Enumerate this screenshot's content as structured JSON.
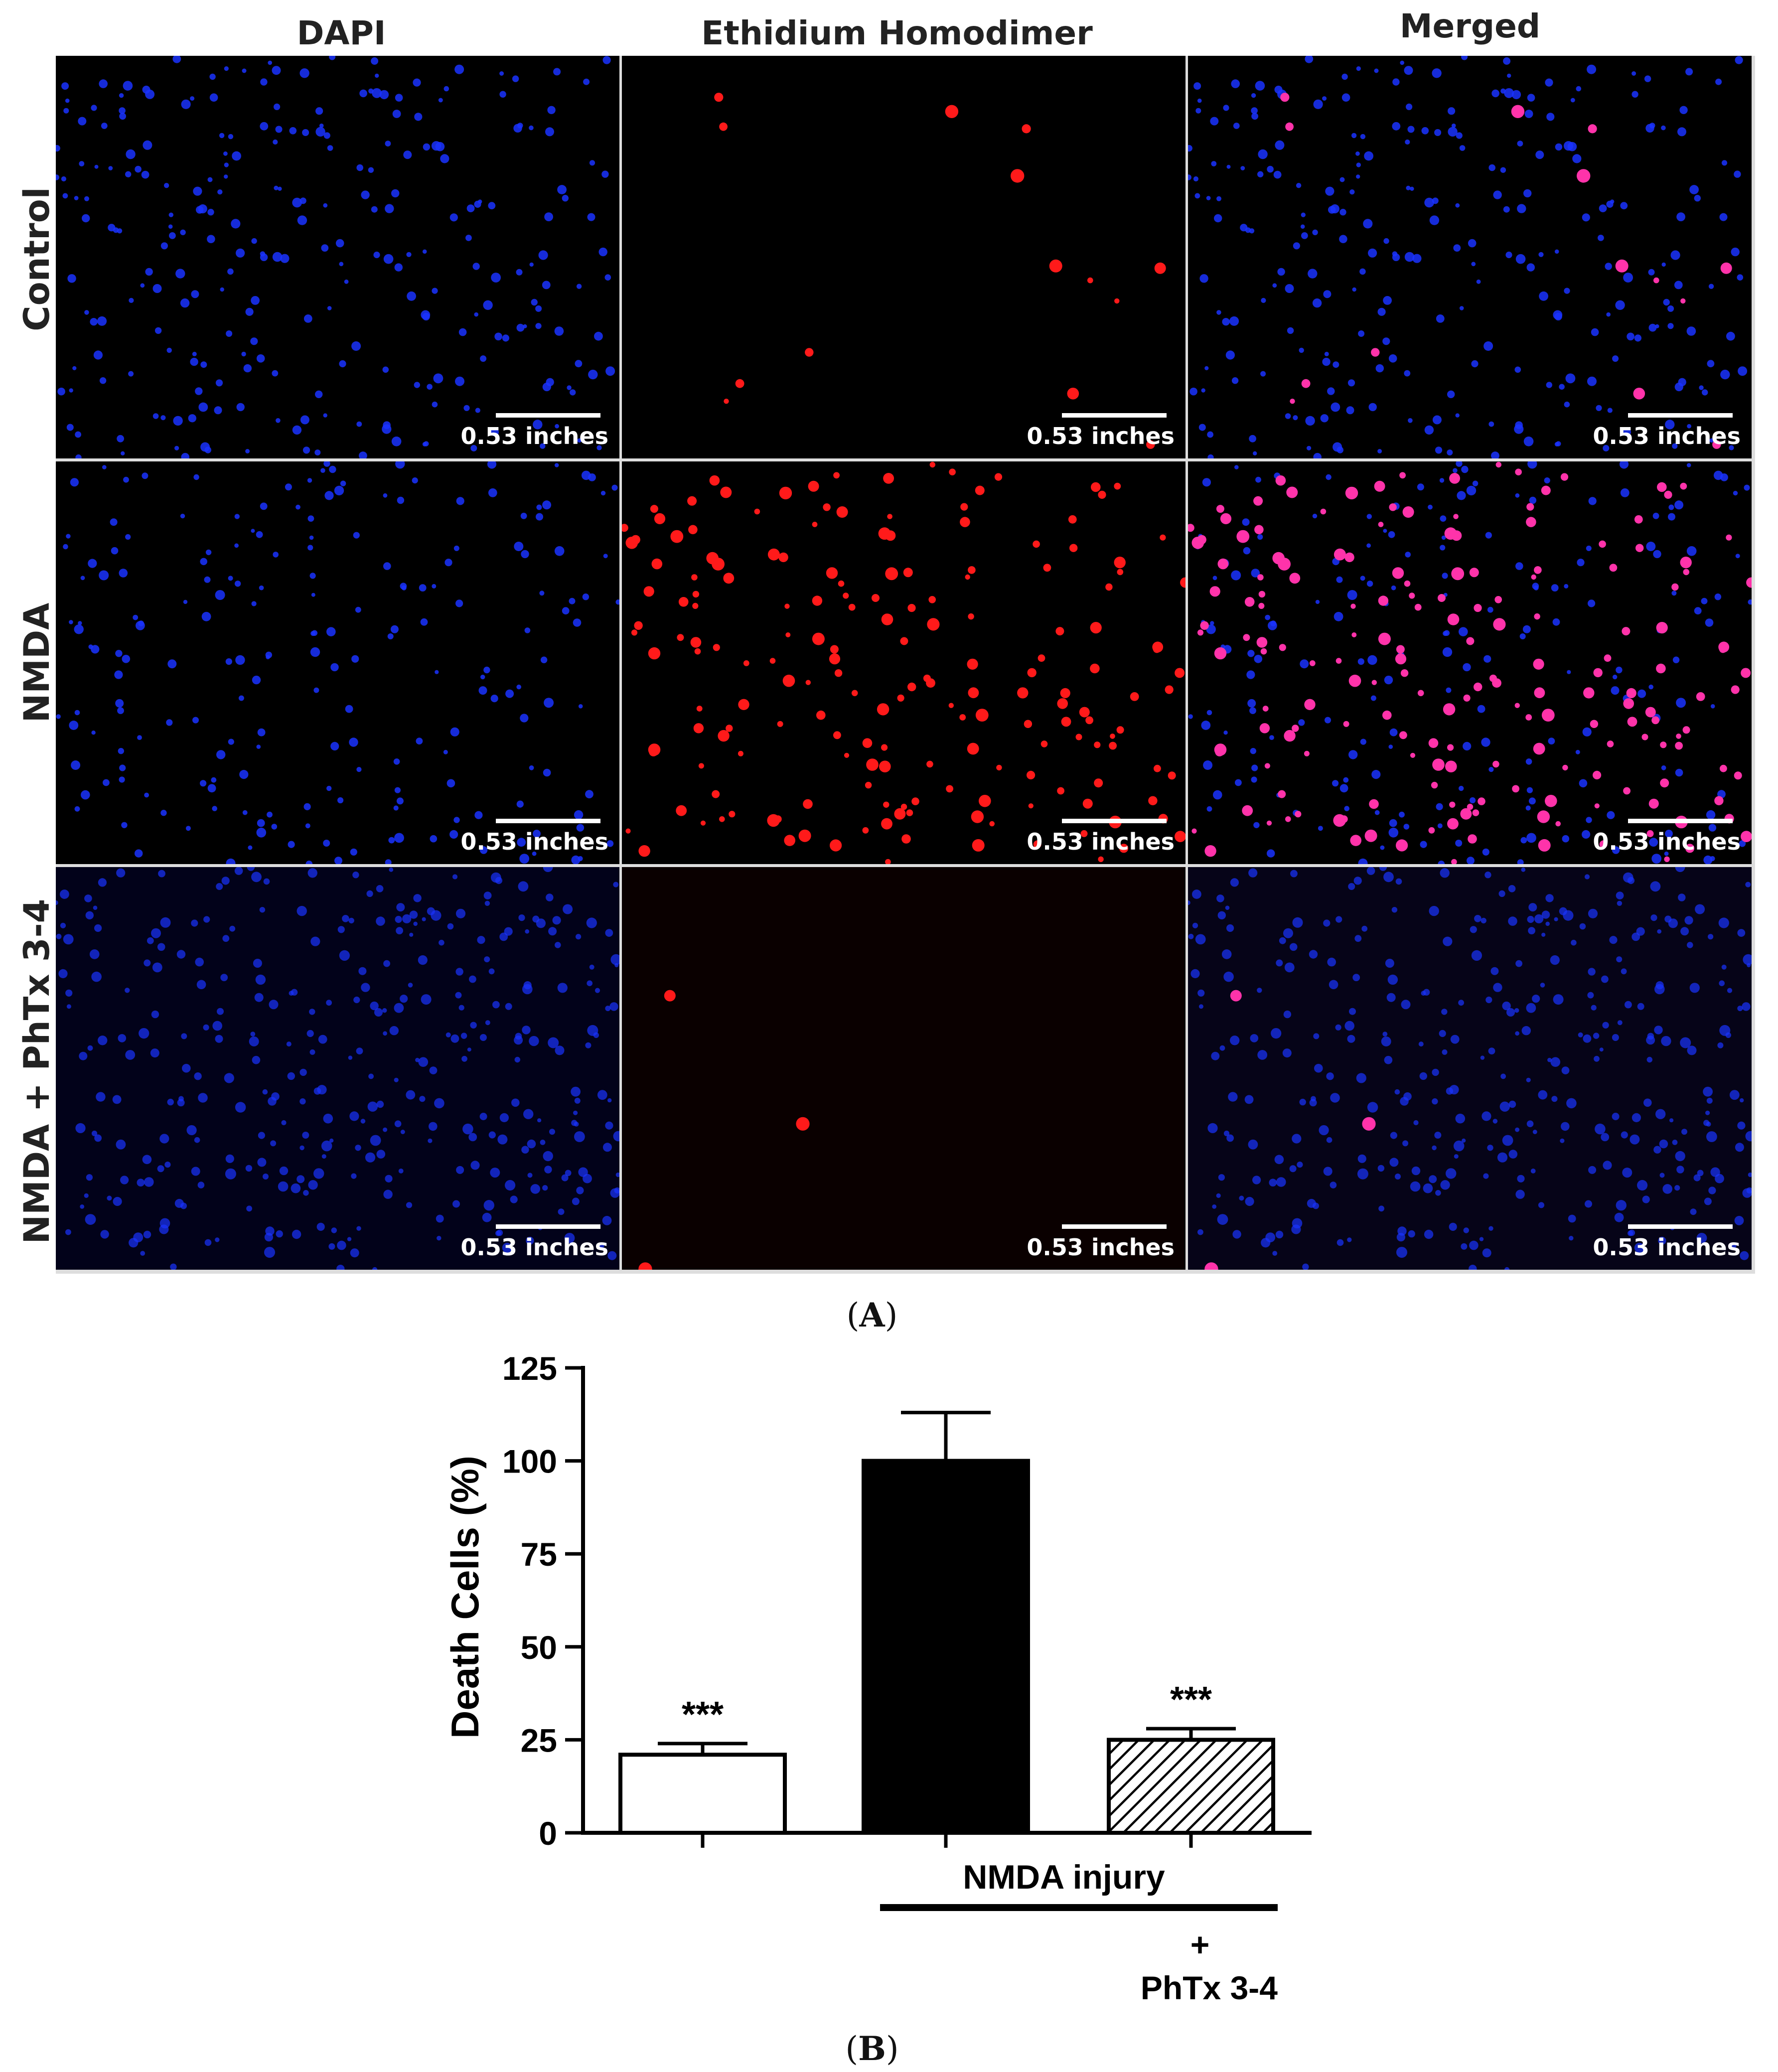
{
  "column_headers": [
    "DAPI",
    "Ethidium Homodimer",
    "Merged"
  ],
  "row_labels": [
    "Control",
    "NMDA",
    "NMDA + PhTx 3-4"
  ],
  "scale_bar_label": "0.53 inches",
  "panel_a_letter": "A",
  "panel_b_letter": "B",
  "colors": {
    "dapi": "#1a33ff",
    "ethidium": "#ff1a1a",
    "merged": "#ff33aa",
    "bar_black": "#000000",
    "bar_white": "#ffffff"
  },
  "chart_data": {
    "type": "bar",
    "ylabel": "Death Cells (%)",
    "ylim": [
      0,
      125
    ],
    "yticks": [
      "0",
      "25",
      "50",
      "75",
      "100",
      "125"
    ],
    "bars": [
      {
        "value": 21,
        "error": 3,
        "fill": "white",
        "annotation": "***"
      },
      {
        "value": 100,
        "error": 13,
        "fill": "black",
        "annotation": ""
      },
      {
        "value": 25,
        "error": 3,
        "fill": "hatched",
        "annotation": "***"
      }
    ],
    "group_label": "NMDA injury",
    "treatment_plus": "+",
    "treatment_label": "PhTx 3-4"
  }
}
